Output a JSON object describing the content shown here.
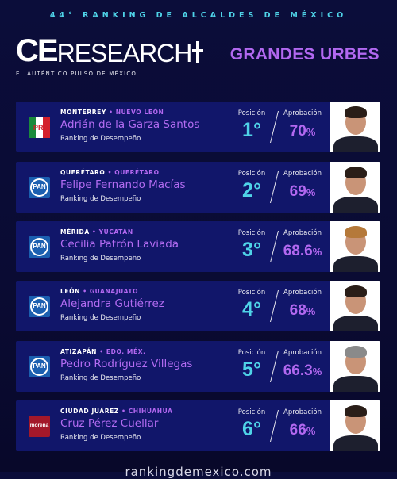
{
  "header": {
    "kicker": "44° RANKING DE ALCALDES DE MÉXICO",
    "logo_ce": "CE",
    "logo_research": "RESEARCH",
    "tagline": "EL AUTÉNTICO PULSO DE MÉXICO",
    "title": "GRANDES URBES"
  },
  "labels": {
    "position": "Posición",
    "approval": "Aprobación",
    "ranking": "Ranking de Desempeño",
    "separator": "•"
  },
  "colors": {
    "accent_purple": "#b268f0",
    "accent_cyan": "#4fd3e8",
    "card_bg": "#11166a"
  },
  "mayors": [
    {
      "city": "MONTERREY",
      "state": "NUEVO LEÓN",
      "name": "Adrián de la Garza Santos",
      "party": "PRI",
      "party_icon": "pri-logo-icon",
      "position": "1°",
      "approval": "70",
      "pct": "%"
    },
    {
      "city": "QUERÉTARO",
      "state": "QUERÉTARO",
      "name": "Felipe Fernando Macías",
      "party": "PAN",
      "party_icon": "pan-logo-icon",
      "position": "2°",
      "approval": "69",
      "pct": "%"
    },
    {
      "city": "MÉRIDA",
      "state": "YUCATÁN",
      "name": "Cecilia Patrón Laviada",
      "party": "PAN",
      "party_icon": "pan-logo-icon",
      "position": "3°",
      "approval": "68.6",
      "pct": "%"
    },
    {
      "city": "LEÓN",
      "state": "GUANAJUATO",
      "name": "Alejandra Gutiérrez",
      "party": "PAN",
      "party_icon": "pan-logo-icon",
      "position": "4°",
      "approval": "68",
      "pct": "%"
    },
    {
      "city": "ATIZAPÁN",
      "state": "EDO. MÉX.",
      "name": "Pedro Rodríguez Villegas",
      "party": "PAN",
      "party_icon": "pan-logo-icon",
      "position": "5°",
      "approval": "66.3",
      "pct": "%"
    },
    {
      "city": "CIUDAD JUÁREZ",
      "state": "CHIHUAHUA",
      "name": "Cruz Pérez Cuellar",
      "party": "morena",
      "party_icon": "morena-logo-icon",
      "position": "6°",
      "approval": "66",
      "pct": "%"
    }
  ],
  "footer": {
    "site": "rankingdemexico.com"
  }
}
